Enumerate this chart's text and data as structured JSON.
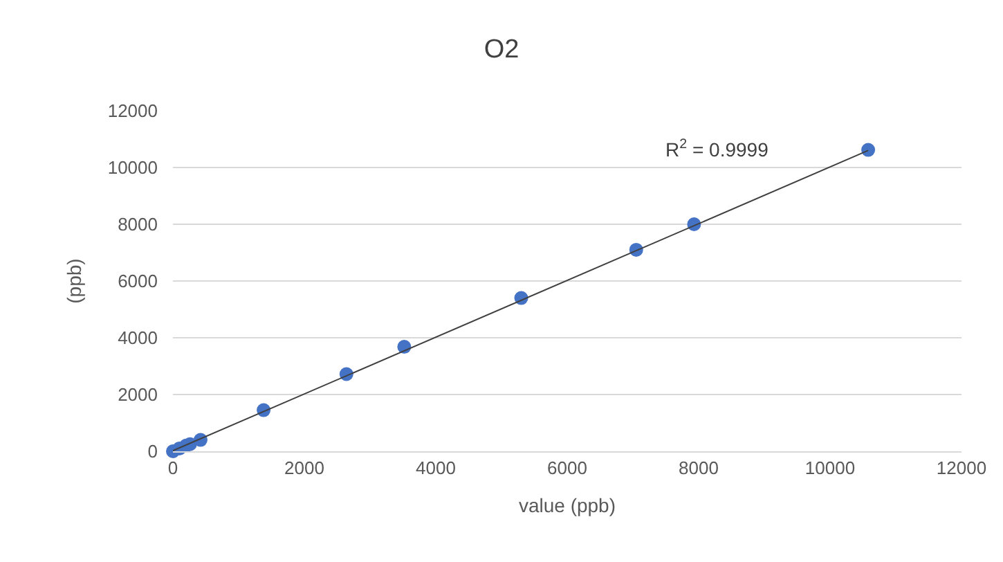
{
  "chart_data": {
    "type": "scatter",
    "title": "O2",
    "xlabel": "value (ppb)",
    "ylabel": "(ppb)",
    "xlim": [
      0,
      12000
    ],
    "xticks": [
      0,
      2000,
      4000,
      6000,
      8000,
      10000,
      12000
    ],
    "ylim": [
      0,
      12000
    ],
    "yticks": [
      0,
      2000,
      4000,
      6000,
      8000,
      10000,
      12000
    ],
    "grid": "y",
    "series": [
      {
        "color": "#4472c4",
        "marker": "circle",
        "x": [
          0,
          100,
          200,
          260,
          420,
          1380,
          2640,
          3520,
          5300,
          7050,
          7930,
          10580
        ],
        "values": [
          0,
          100,
          200,
          250,
          400,
          1450,
          2720,
          3680,
          5400,
          7100,
          8000,
          10620
        ]
      },
      {
        "type": "line",
        "color": "#404040",
        "line_style": "solid",
        "marker": "none",
        "x": [
          0,
          10580
        ],
        "values": [
          20,
          10600
        ]
      }
    ],
    "annotations": [
      "R$^{2}$ = 0.9999"
    ]
  }
}
